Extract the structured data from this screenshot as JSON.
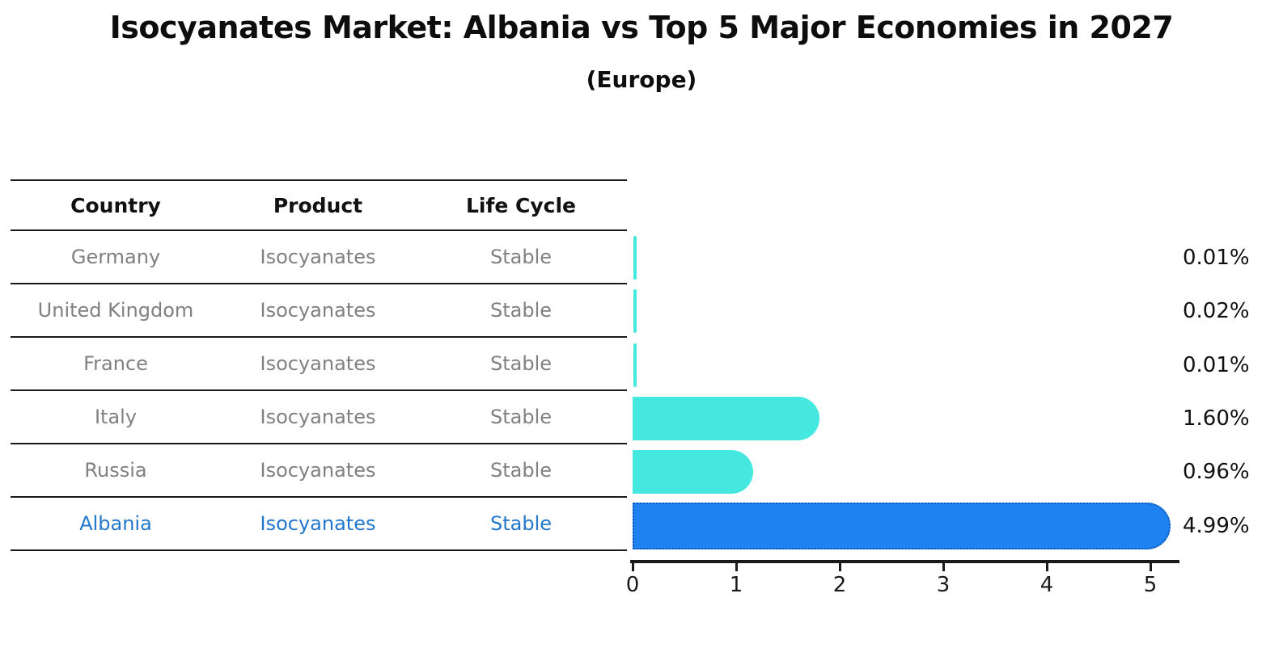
{
  "title": "Isocyanates Market: Albania vs Top 5 Major Economies in 2027",
  "subtitle": "(Europe)",
  "table": {
    "headers": [
      "Country",
      "Product",
      "Life Cycle"
    ],
    "rows": [
      {
        "country": "Germany",
        "product": "Isocyanates",
        "life_cycle": "Stable",
        "highlight": false
      },
      {
        "country": "United Kingdom",
        "product": "Isocyanates",
        "life_cycle": "Stable",
        "highlight": false
      },
      {
        "country": "France",
        "product": "Isocyanates",
        "life_cycle": "Stable",
        "highlight": false
      },
      {
        "country": "Italy",
        "product": "Isocyanates",
        "life_cycle": "Stable",
        "highlight": false
      },
      {
        "country": "Russia",
        "product": "Isocyanates",
        "life_cycle": "Stable",
        "highlight": false
      },
      {
        "country": "Albania",
        "product": "Isocyanates",
        "life_cycle": "Stable",
        "highlight": true
      }
    ]
  },
  "chart_data": {
    "type": "bar",
    "orientation": "horizontal",
    "title": "Isocyanates Market: Albania vs Top 5 Major Economies in 2027",
    "subtitle": "(Europe)",
    "categories": [
      "Germany",
      "United Kingdom",
      "France",
      "Italy",
      "Russia",
      "Albania"
    ],
    "values": [
      0.01,
      0.02,
      0.01,
      1.6,
      0.96,
      4.99
    ],
    "value_labels": [
      "0.01%",
      "0.02%",
      "0.01%",
      "1.60%",
      "0.96%",
      "4.99%"
    ],
    "x_ticks": [
      "0",
      "1",
      "2",
      "3",
      "4",
      "5"
    ],
    "xlim": [
      0,
      5.27
    ],
    "xlabel": "",
    "ylabel": "",
    "grid": false,
    "legend": "none",
    "highlight_index": 5
  },
  "colors": {
    "bar_default": "#45E8DF",
    "bar_highlight": "#1E82F0",
    "bar_highlight_border": "#1057B8",
    "row_text": "#808080",
    "highlight_text": "#2277CC",
    "header_text": "#111111",
    "axis": "#1A1A1A"
  }
}
